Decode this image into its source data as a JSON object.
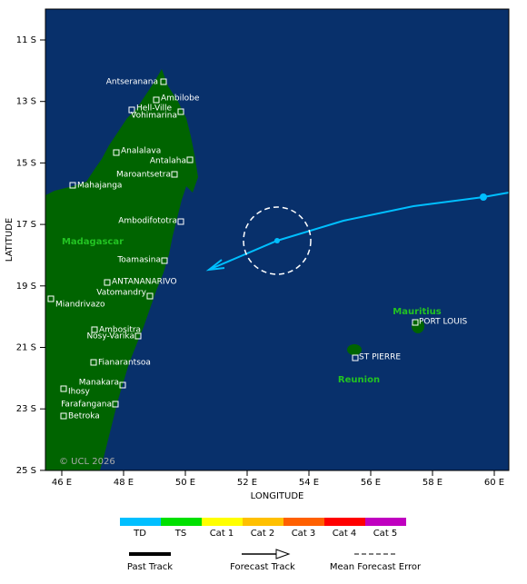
{
  "map": {
    "x_axis_label": "LONGITUDE",
    "y_axis_label": "LATITUDE",
    "lat_ticks": [
      "11 S",
      "13 S",
      "15 S",
      "17 S",
      "19 S",
      "21 S",
      "23 S",
      "25 S"
    ],
    "lon_ticks": [
      "46 E",
      "48 E",
      "50 E",
      "52 E",
      "54 E",
      "56 E",
      "58 E",
      "60 E"
    ],
    "places": [
      "Antseranana",
      "Ambilobe",
      "Hell-Ville",
      "Vohimarina",
      "Analalava",
      "Antalaha",
      "Maroantsetra",
      "Mahajanga",
      "Ambodifototra",
      "Toamasina",
      "ANTANANARIVO",
      "Vatomandry",
      "Miandrivazo",
      "Ambositra",
      "Nosy-Varika",
      "Fianarantsoa",
      "Manakara",
      "Ihosy",
      "Farafangana",
      "Betroka",
      "PORT LOUIS",
      "ST PIERRE"
    ],
    "regions": [
      "Madagascar",
      "Mauritius",
      "Reunion"
    ],
    "copyright": "© UCL 2026"
  },
  "legend": {
    "categories": [
      {
        "name": "TD",
        "color": "#00bfff"
      },
      {
        "name": "TS",
        "color": "#00e000"
      },
      {
        "name": "Cat 1",
        "color": "#ffff00"
      },
      {
        "name": "Cat 2",
        "color": "#ffc000"
      },
      {
        "name": "Cat 3",
        "color": "#ff6000"
      },
      {
        "name": "Cat 4",
        "color": "#ff0000"
      },
      {
        "name": "Cat 5",
        "color": "#c000c0"
      }
    ],
    "tracks": [
      "Past Track",
      "Forecast Track",
      "Mean Forecast Error"
    ]
  }
}
